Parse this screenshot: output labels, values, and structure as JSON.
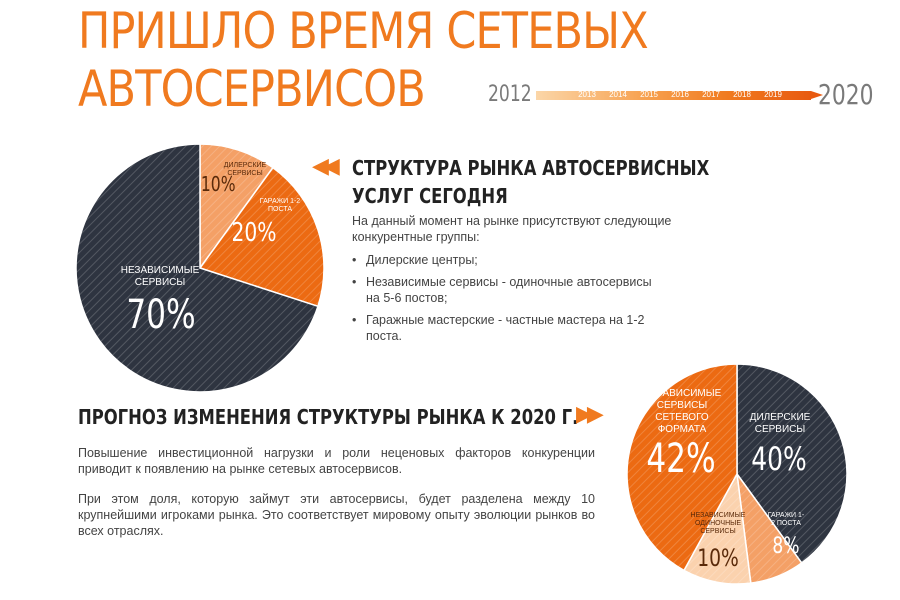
{
  "header": {
    "title_line1": "ПРИШЛО ВРЕМЯ СЕТЕВЫХ",
    "title_line2": "АВТОСЕРВИСОВ"
  },
  "timeline": {
    "start": "2012",
    "end": "2020",
    "years": [
      "2013",
      "2014",
      "2015",
      "2016",
      "2017",
      "2018",
      "2019"
    ]
  },
  "section1": {
    "heading_line1": "СТРУКТУРА РЫНКА АВТОСЕРВИСНЫХ",
    "heading_line2": "УСЛУГ СЕГОДНЯ",
    "intro": "На данный момент на рынке присутствуют следующие конкурентные группы:",
    "bullets": [
      "Дилерские центры;",
      "Независимые сервисы - одиночные автосервисы на 5-6 постов;",
      "Гаражные мастерские - частные мастера на 1-2 поста."
    ]
  },
  "section2": {
    "heading": "ПРОГНОЗ ИЗМЕНЕНИЯ СТРУКТУРЫ РЫНКА К 2020 Г.",
    "para1": "Повышение инвестиционной нагрузки и роли неценовых факторов конкуренции приводит к появлению на рынке сетевых автосервисов.",
    "para2": "При этом доля, которую займут эти автосервисы, будет разделена между 10 крупнейшими игроками рынка. Это соответствует мировому опыту эволюции рынков во всех отраслях."
  },
  "chart_data": [
    {
      "type": "pie",
      "slices": [
        {
          "label": "Дилерские сервисы",
          "value": 10,
          "value_label": "10%",
          "color": "#f4a066"
        },
        {
          "label": "Гаражи 1-2 поста",
          "value": 20,
          "value_label": "20%",
          "color": "#ec6a12"
        },
        {
          "label": "Независимые сервисы",
          "value": 70,
          "value_label": "70%",
          "color": "#2e3440"
        }
      ]
    },
    {
      "type": "pie",
      "slices": [
        {
          "label": "Дилерские сервисы",
          "value": 40,
          "value_label": "40%",
          "color": "#2e3440"
        },
        {
          "label": "Гаражи 1-2 поста",
          "value": 8,
          "value_label": "8%",
          "color": "#f4a066"
        },
        {
          "label": "Независимые одиночные сервисы",
          "value": 10,
          "value_label": "10%",
          "color": "#fbd2ae"
        },
        {
          "label": "Независимые сервисы сетевого формата",
          "value": 42,
          "value_label": "42%",
          "color": "#ec6a12"
        }
      ]
    }
  ]
}
